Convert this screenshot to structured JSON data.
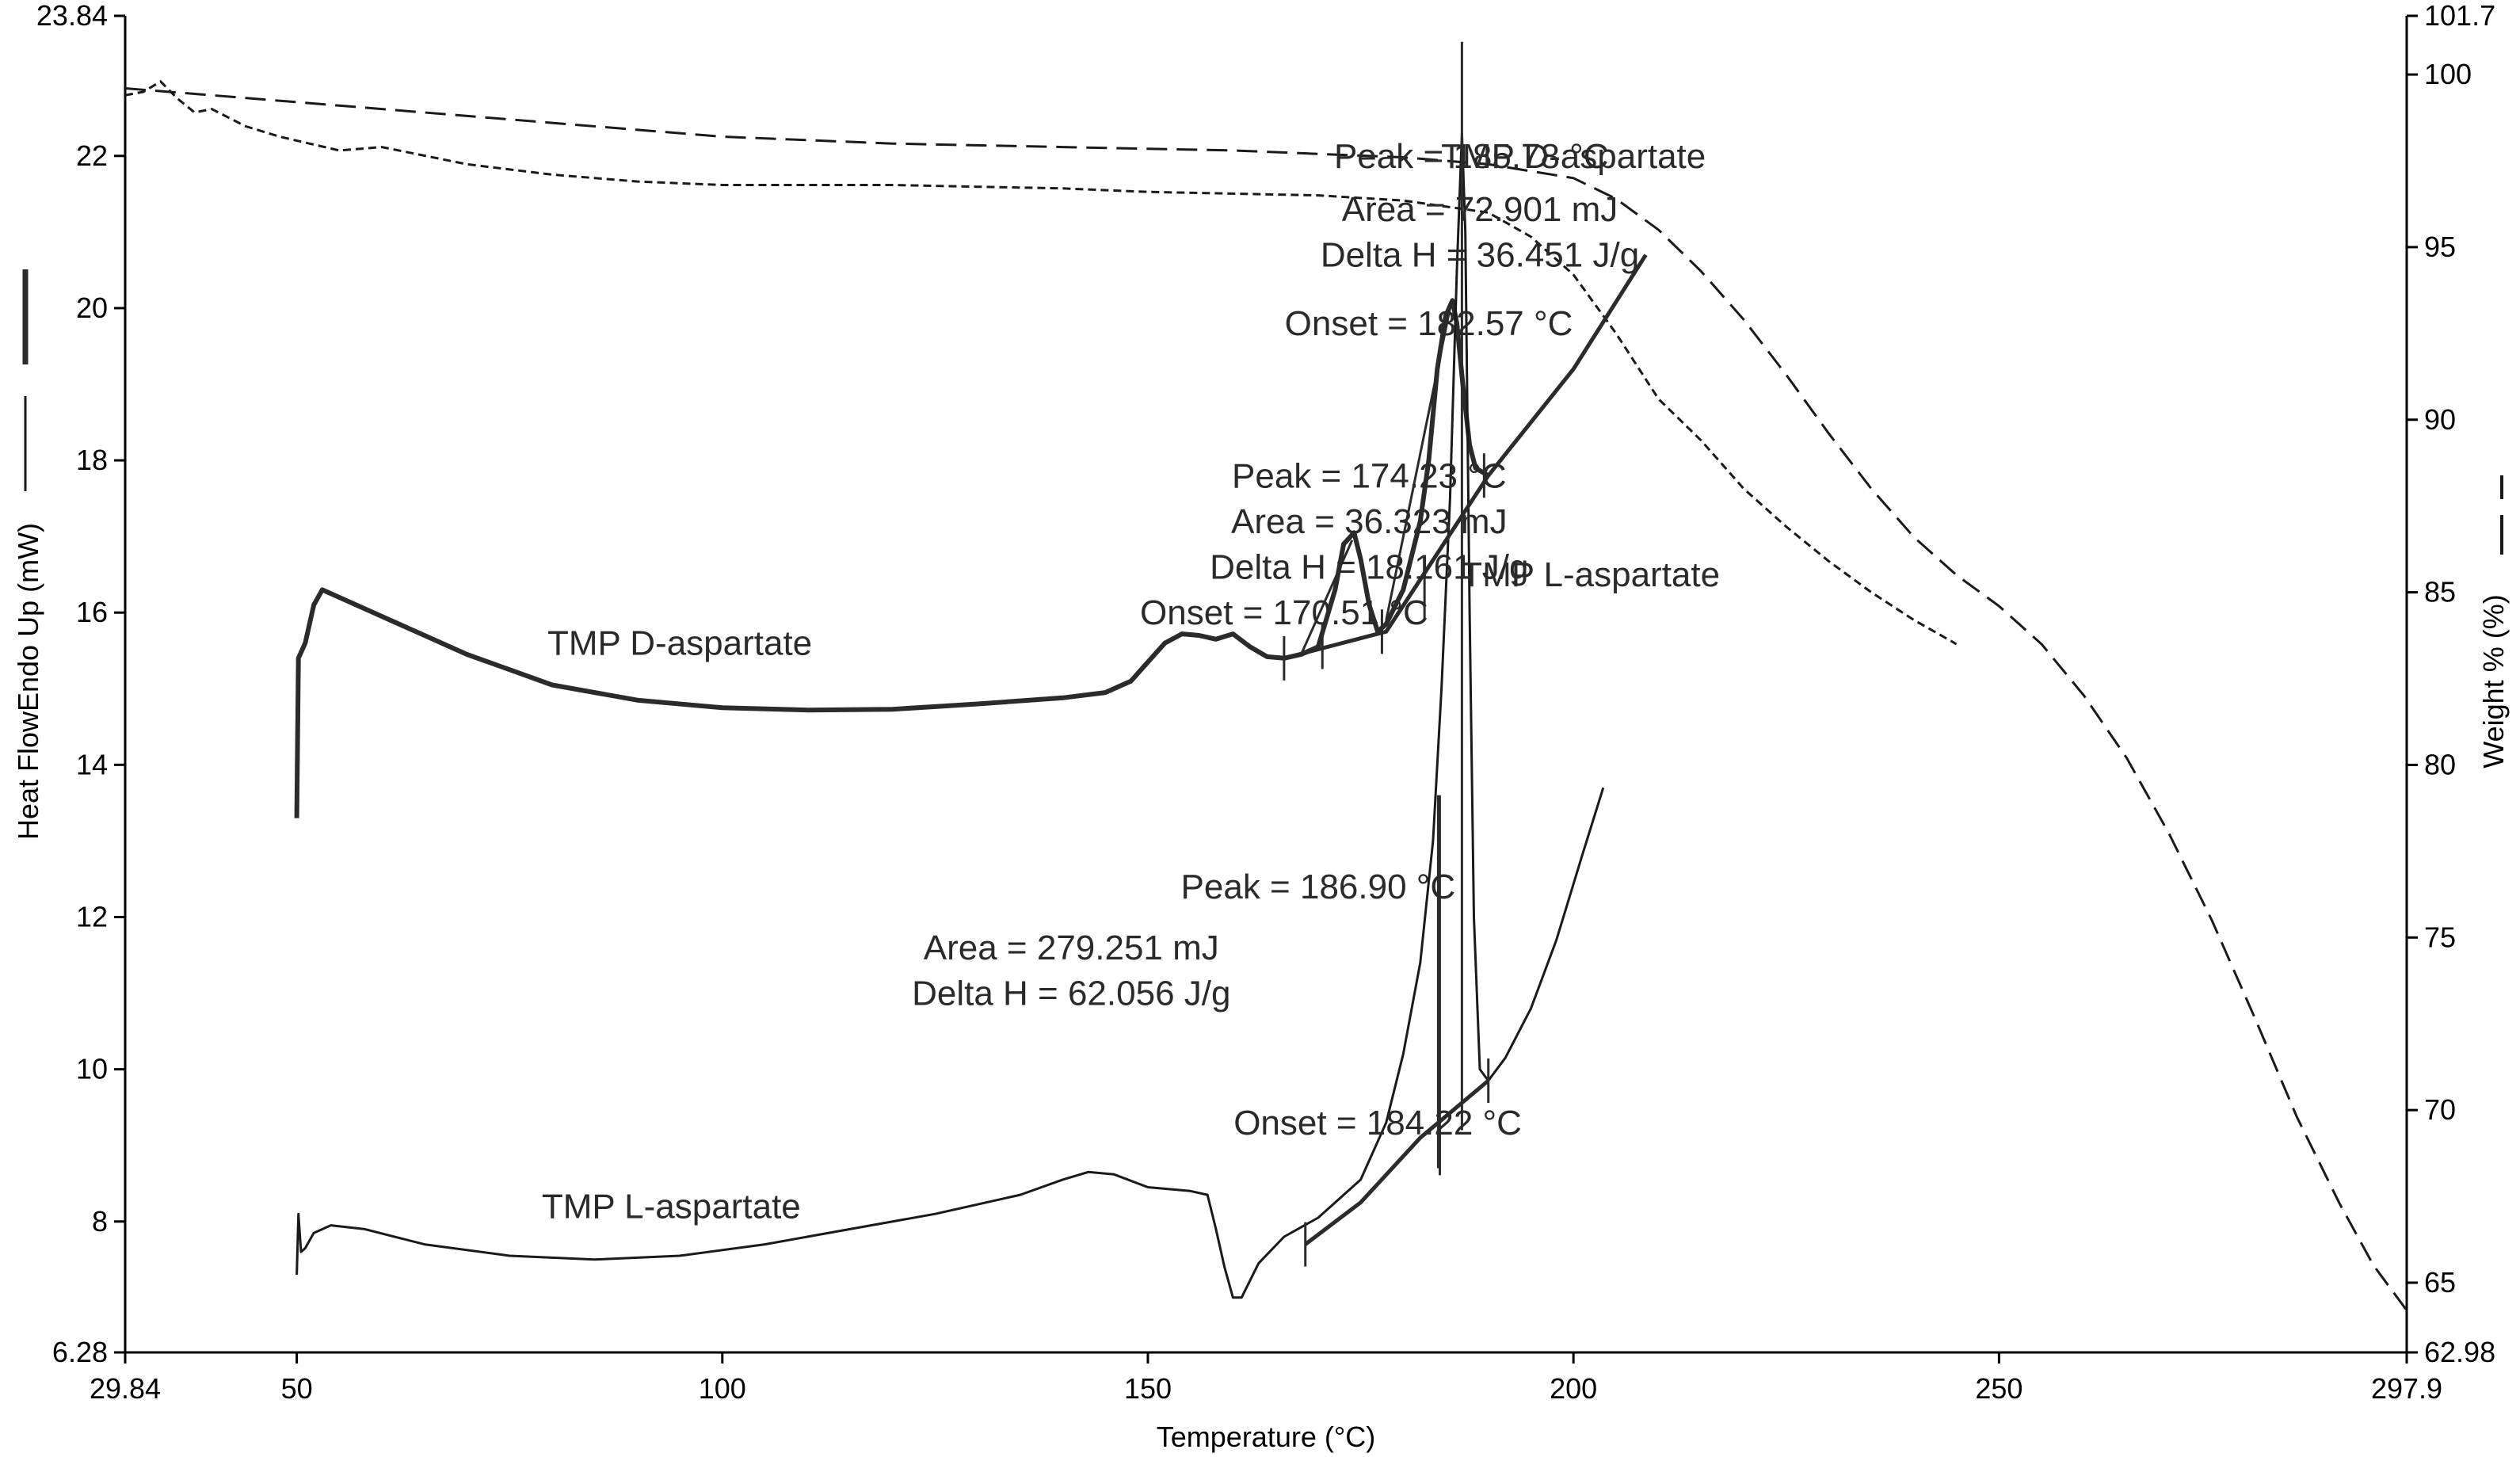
{
  "chart_data": {
    "type": "line",
    "xlabel": "Temperature (°C)",
    "ylabel": "Heat FlowEndo Up (mW)",
    "y2label": "Weight % (%)",
    "xlim": [
      29.84,
      297.9
    ],
    "ylim": [
      6.28,
      23.84
    ],
    "y2lim": [
      62.98,
      101.7
    ],
    "x_ticks": [
      29.84,
      50,
      100,
      150,
      200,
      250,
      297.9
    ],
    "x_tick_labels": [
      "29.84",
      "50",
      "100",
      "150",
      "200",
      "250",
      "297.9"
    ],
    "y_ticks": [
      6.28,
      8,
      10,
      12,
      14,
      16,
      18,
      20,
      22,
      23.84
    ],
    "y_tick_labels": [
      "6.28",
      "8",
      "10",
      "12",
      "14",
      "16",
      "18",
      "20",
      "22",
      "23.84"
    ],
    "y2_ticks": [
      62.98,
      65,
      70,
      75,
      80,
      85,
      90,
      95,
      100,
      101.7
    ],
    "y2_tick_labels": [
      "62.98",
      "65",
      "70",
      "75",
      "80",
      "85",
      "90",
      "95",
      "100",
      "101.7"
    ],
    "series": [
      {
        "name": "TMP D-aspartate",
        "kind": "dsc",
        "axis": "left",
        "points": [
          [
            50,
            13.3
          ],
          [
            50.2,
            15.4
          ],
          [
            51,
            15.6
          ],
          [
            52,
            16.1
          ],
          [
            53,
            16.3
          ],
          [
            55,
            16.2
          ],
          [
            60,
            15.95
          ],
          [
            65,
            15.7
          ],
          [
            70,
            15.45
          ],
          [
            75,
            15.25
          ],
          [
            80,
            15.05
          ],
          [
            90,
            14.85
          ],
          [
            100,
            14.75
          ],
          [
            110,
            14.72
          ],
          [
            120,
            14.73
          ],
          [
            130,
            14.8
          ],
          [
            140,
            14.88
          ],
          [
            145,
            14.95
          ],
          [
            148,
            15.1
          ],
          [
            150,
            15.35
          ],
          [
            152,
            15.6
          ],
          [
            154,
            15.72
          ],
          [
            156,
            15.7
          ],
          [
            158,
            15.65
          ],
          [
            160,
            15.72
          ],
          [
            162,
            15.55
          ],
          [
            164,
            15.42
          ],
          [
            166,
            15.4
          ],
          [
            168,
            15.45
          ],
          [
            170,
            15.55
          ],
          [
            172,
            16.3
          ],
          [
            173,
            16.9
          ],
          [
            174.23,
            17.05
          ],
          [
            175,
            16.7
          ],
          [
            176,
            16.1
          ],
          [
            177,
            15.75
          ],
          [
            178,
            15.85
          ],
          [
            180,
            16.3
          ],
          [
            182,
            17.2
          ],
          [
            183,
            18.0
          ],
          [
            184,
            19.2
          ],
          [
            185,
            19.9
          ],
          [
            185.78,
            20.1
          ],
          [
            186.3,
            19.8
          ],
          [
            187,
            19.0
          ],
          [
            187.8,
            18.2
          ],
          [
            188.5,
            17.9
          ],
          [
            190,
            17.8
          ]
        ]
      },
      {
        "name": "TMP L-aspartate",
        "kind": "dsc",
        "axis": "left",
        "points": [
          [
            50,
            7.3
          ],
          [
            50.2,
            8.1
          ],
          [
            50.5,
            7.6
          ],
          [
            51,
            7.65
          ],
          [
            52,
            7.85
          ],
          [
            54,
            7.95
          ],
          [
            58,
            7.9
          ],
          [
            65,
            7.7
          ],
          [
            75,
            7.55
          ],
          [
            85,
            7.5
          ],
          [
            95,
            7.55
          ],
          [
            105,
            7.7
          ],
          [
            115,
            7.9
          ],
          [
            125,
            8.1
          ],
          [
            135,
            8.35
          ],
          [
            140,
            8.55
          ],
          [
            143,
            8.65
          ],
          [
            146,
            8.62
          ],
          [
            150,
            8.45
          ],
          [
            155,
            8.4
          ],
          [
            157,
            8.35
          ],
          [
            158,
            7.9
          ],
          [
            159,
            7.4
          ],
          [
            160,
            7.0
          ],
          [
            161,
            7.0
          ],
          [
            163,
            7.45
          ],
          [
            166,
            7.8
          ],
          [
            170,
            8.05
          ],
          [
            175,
            8.55
          ],
          [
            178,
            9.3
          ],
          [
            180,
            10.2
          ],
          [
            182,
            11.4
          ],
          [
            183.5,
            13.0
          ],
          [
            184.5,
            15.0
          ],
          [
            185.5,
            17.5
          ],
          [
            186.3,
            20.5
          ],
          [
            186.9,
            22.3
          ],
          [
            187.3,
            21.0
          ],
          [
            187.8,
            16.0
          ],
          [
            188.3,
            12.0
          ],
          [
            189,
            10.0
          ],
          [
            190,
            9.85
          ],
          [
            192,
            10.15
          ],
          [
            195,
            10.8
          ],
          [
            198,
            11.7
          ],
          [
            201,
            12.8
          ],
          [
            203.5,
            13.7
          ]
        ]
      },
      {
        "name": "TMP D-aspartate",
        "kind": "tga",
        "axis": "right",
        "style": "long-dash",
        "points": [
          [
            29.84,
            99.6
          ],
          [
            40,
            99.4
          ],
          [
            60,
            99.0
          ],
          [
            80,
            98.6
          ],
          [
            100,
            98.2
          ],
          [
            120,
            98.0
          ],
          [
            140,
            97.9
          ],
          [
            160,
            97.8
          ],
          [
            180,
            97.6
          ],
          [
            190,
            97.4
          ],
          [
            200,
            97.0
          ],
          [
            205,
            96.4
          ],
          [
            210,
            95.5
          ],
          [
            215,
            94.3
          ],
          [
            220,
            92.9
          ],
          [
            225,
            91.3
          ],
          [
            230,
            89.6
          ],
          [
            235,
            88.0
          ],
          [
            240,
            86.6
          ],
          [
            245,
            85.5
          ],
          [
            250,
            84.6
          ],
          [
            255,
            83.5
          ],
          [
            260,
            82.0
          ],
          [
            265,
            80.2
          ],
          [
            270,
            78.0
          ],
          [
            275,
            75.5
          ],
          [
            280,
            72.7
          ],
          [
            285,
            69.8
          ],
          [
            290,
            67.3
          ],
          [
            294,
            65.5
          ],
          [
            297.9,
            64.2
          ]
        ]
      },
      {
        "name": "TMP L-aspartate",
        "kind": "tga",
        "axis": "right",
        "style": "short-dash",
        "points": [
          [
            29.84,
            99.4
          ],
          [
            32,
            99.5
          ],
          [
            34,
            99.8
          ],
          [
            36,
            99.3
          ],
          [
            38,
            98.9
          ],
          [
            40,
            99.0
          ],
          [
            44,
            98.5
          ],
          [
            48,
            98.2
          ],
          [
            55,
            97.8
          ],
          [
            60,
            97.9
          ],
          [
            70,
            97.4
          ],
          [
            80,
            97.1
          ],
          [
            90,
            96.9
          ],
          [
            100,
            96.8
          ],
          [
            110,
            96.8
          ],
          [
            120,
            96.8
          ],
          [
            130,
            96.75
          ],
          [
            140,
            96.7
          ],
          [
            150,
            96.6
          ],
          [
            160,
            96.55
          ],
          [
            170,
            96.5
          ],
          [
            180,
            96.35
          ],
          [
            190,
            96.0
          ],
          [
            195,
            95.3
          ],
          [
            200,
            94.2
          ],
          [
            205,
            92.5
          ],
          [
            210,
            90.6
          ],
          [
            215,
            89.4
          ],
          [
            220,
            88.0
          ],
          [
            225,
            86.9
          ],
          [
            230,
            85.9
          ],
          [
            235,
            85.0
          ],
          [
            240,
            84.2
          ],
          [
            245,
            83.5
          ]
        ]
      }
    ],
    "annotations": [
      {
        "text": "Peak = 185.78 °C",
        "x": 188,
        "y": 22.0
      },
      {
        "text": "Area = 72.901 mJ",
        "x": 189,
        "y": 21.3
      },
      {
        "text": "Delta H = 36.451 J/g",
        "x": 189,
        "y": 20.7
      },
      {
        "text": "Onset = 182.57 °C",
        "x": 183,
        "y": 19.8
      },
      {
        "text": "Peak = 174.23 °C",
        "x": 176,
        "y": 17.8
      },
      {
        "text": "Area = 36.323 mJ",
        "x": 176,
        "y": 17.2
      },
      {
        "text": "Delta H = 18.161 J/g",
        "x": 176,
        "y": 16.6
      },
      {
        "text": "Onset = 170.51 °C",
        "x": 166,
        "y": 16.0
      },
      {
        "text": "TMP D-aspartate",
        "x": 95,
        "y": 15.6
      },
      {
        "text": "TMP D-aspartate",
        "x": 200,
        "y": 22.0
      },
      {
        "text": "TMP L-aspartate",
        "x": 202,
        "y": 16.5
      },
      {
        "text": "Peak = 186.90 °C",
        "x": 170,
        "y": 12.4
      },
      {
        "text": "Area = 279.251 mJ",
        "x": 141,
        "y": 11.6
      },
      {
        "text": "Delta H = 62.056 J/g",
        "x": 141,
        "y": 11.0
      },
      {
        "text": "Onset = 184.22 °C",
        "x": 177,
        "y": 9.3
      },
      {
        "text": "TMP L-aspartate",
        "x": 94,
        "y": 8.2
      }
    ],
    "construction": {
      "d_aspartate_baseline_wide": [
        [
          166,
          15.4
        ],
        [
          178,
          15.75
        ],
        [
          190,
          17.8
        ],
        [
          200,
          19.2
        ],
        [
          208.5,
          20.7
        ]
      ],
      "d_aspartate_onset_small": [
        [
          168,
          15.45
        ],
        [
          174,
          16.95
        ]
      ],
      "d_aspartate_onset_large": [
        [
          178,
          15.9
        ],
        [
          185.5,
          20.0
        ]
      ],
      "l_aspartate_baseline": [
        [
          168.5,
          7.7
        ],
        [
          175,
          8.25
        ],
        [
          182,
          9.1
        ],
        [
          190,
          9.85
        ]
      ],
      "l_aspartate_peak_drop": [
        [
          184.2,
          8.7
        ],
        [
          184.2,
          13.6
        ]
      ],
      "d_aspartate_peak_drop": [
        [
          186.9,
          9.2
        ],
        [
          186.9,
          23.5
        ]
      ],
      "markers": [
        {
          "x": 166,
          "y": 15.4
        },
        {
          "x": 170.5,
          "y": 15.55
        },
        {
          "x": 177.5,
          "y": 15.75
        },
        {
          "x": 182.5,
          "y": 16.2
        },
        {
          "x": 189.5,
          "y": 17.8
        },
        {
          "x": 168.5,
          "y": 7.7
        },
        {
          "x": 184.3,
          "y": 8.9
        },
        {
          "x": 190,
          "y": 9.85
        }
      ]
    }
  }
}
